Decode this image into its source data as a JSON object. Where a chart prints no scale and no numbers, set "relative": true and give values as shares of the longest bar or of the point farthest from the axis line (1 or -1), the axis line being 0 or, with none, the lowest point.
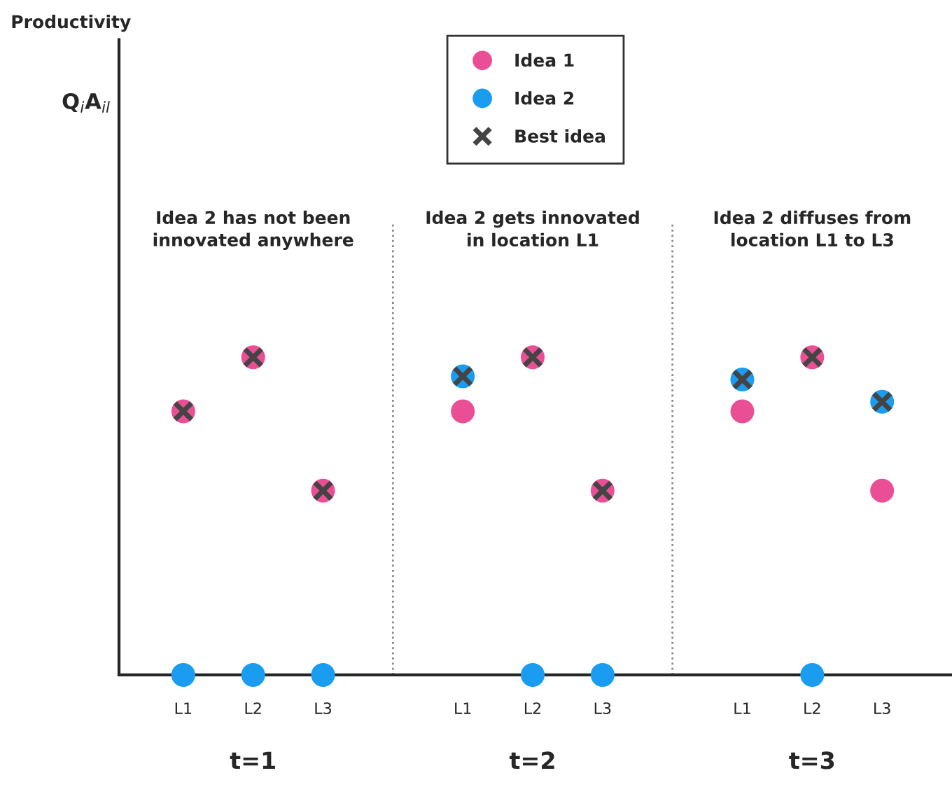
{
  "chart_data": {
    "type": "scatter",
    "title": "Productivity",
    "categories": [
      "L1",
      "L2",
      "L3",
      null,
      "L1",
      "L2",
      "L3",
      null,
      "L1",
      "L2",
      "L3"
    ],
    "relative": true,
    "tick_labels": "x",
    "legend": "top",
    "annotations": [
      "Q$_{i}$A$_{il}$",
      "Idea 2 has not been\ninnovated anywhere",
      "t=1",
      "Idea 2 gets innovated\nin location L1",
      "t=2",
      "Idea 2 diffuses from\nlocation L1 to L3",
      "t=3"
    ],
    "series": [
      {
        "name": "Idea 1",
        "color": "#ea4f95",
        "marker": "circle",
        "values": [
          0.83,
          1,
          0.58,
          null,
          0.83,
          1,
          0.58,
          null,
          0.83,
          1,
          0.58
        ]
      },
      {
        "name": "Idea 2",
        "color": "#1a9cf0",
        "marker": "circle",
        "values": [
          0,
          0,
          0,
          null,
          0.94,
          0,
          0,
          null,
          0.93,
          0,
          0.86
        ]
      },
      {
        "name": "Best idea",
        "color": "#444444",
        "marker": "cross",
        "values": [
          0.83,
          1,
          0.58,
          null,
          0.94,
          1,
          0.58,
          null,
          0.93,
          1,
          0.86
        ]
      }
    ]
  }
}
